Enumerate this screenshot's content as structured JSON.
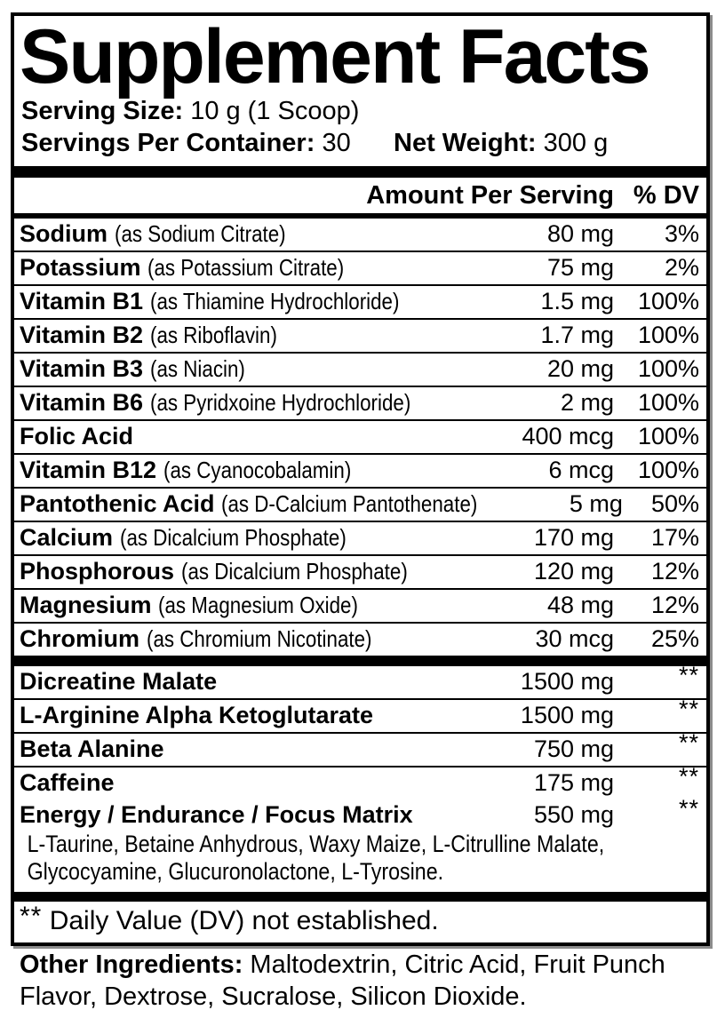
{
  "label": {
    "title": "Supplement Facts",
    "serving_size_label": "Serving Size:",
    "serving_size_value": "10 g (1 Scoop)",
    "servings_per_container_label": "Servings Per Container:",
    "servings_per_container_value": "30",
    "net_weight_label": "Net Weight:",
    "net_weight_value": "300 g",
    "amount_header": "Amount Per Serving",
    "dv_header": "% DV",
    "nutrients": [
      {
        "name": "Sodium",
        "detail": "(as Sodium Citrate)",
        "amount": "80 mg",
        "dv": "3%"
      },
      {
        "name": "Potassium",
        "detail": "(as Potassium Citrate)",
        "amount": "75 mg",
        "dv": "2%"
      },
      {
        "name": "Vitamin B1",
        "detail": "(as Thiamine Hydrochloride)",
        "amount": "1.5 mg",
        "dv": "100%"
      },
      {
        "name": "Vitamin B2",
        "detail": "(as Riboflavin)",
        "amount": "1.7 mg",
        "dv": "100%"
      },
      {
        "name": "Vitamin B3",
        "detail": "(as Niacin)",
        "amount": "20 mg",
        "dv": "100%"
      },
      {
        "name": "Vitamin B6",
        "detail": "(as Pyridxoine Hydrochloride)",
        "amount": "2 mg",
        "dv": "100%"
      },
      {
        "name": "Folic Acid",
        "detail": "",
        "amount": "400 mcg",
        "dv": "100%"
      },
      {
        "name": "Vitamin B12",
        "detail": "(as Cyanocobalamin)",
        "amount": "6 mcg",
        "dv": "100%"
      },
      {
        "name": "Pantothenic Acid",
        "detail": "(as D-Calcium Pantothenate)",
        "amount": "5 mg",
        "dv": "50%"
      },
      {
        "name": "Calcium",
        "detail": "(as Dicalcium Phosphate)",
        "amount": "170 mg",
        "dv": "17%"
      },
      {
        "name": "Phosphorous",
        "detail": "(as Dicalcium Phosphate)",
        "amount": "120 mg",
        "dv": "12%"
      },
      {
        "name": "Magnesium",
        "detail": "(as Magnesium Oxide)",
        "amount": "48 mg",
        "dv": "12%"
      },
      {
        "name": "Chromium",
        "detail": "(as Chromium Nicotinate)",
        "amount": "30 mcg",
        "dv": "25%"
      }
    ],
    "blend": [
      {
        "name": "Dicreatine Malate",
        "amount": "1500 mg",
        "dv": "**"
      },
      {
        "name": "L-Arginine Alpha Ketoglutarate",
        "amount": "1500 mg",
        "dv": "**"
      },
      {
        "name": "Beta Alanine",
        "amount": "750 mg",
        "dv": "**"
      },
      {
        "name": "Caffeine",
        "amount": "175 mg",
        "dv": "**"
      }
    ],
    "matrix": {
      "name": "Energy / Endurance / Focus Matrix",
      "amount": "550 mg",
      "dv": "**",
      "sub": "L-Taurine, Betaine Anhydrous, Waxy Maize, L-Citrulline Malate, Glycocyamine, Glucuronolactone, L-Tyrosine."
    },
    "footnote_stars": "**",
    "footnote_text": "Daily Value (DV) not established.",
    "other_ingredients_label": "Other Ingredients:",
    "other_ingredients_value": "Maltodextrin, Citric Acid, Fruit Punch Flavor, Dextrose, Sucralose, Silicon Dioxide.",
    "colors": {
      "text": "#000000",
      "background": "#ffffff"
    }
  }
}
